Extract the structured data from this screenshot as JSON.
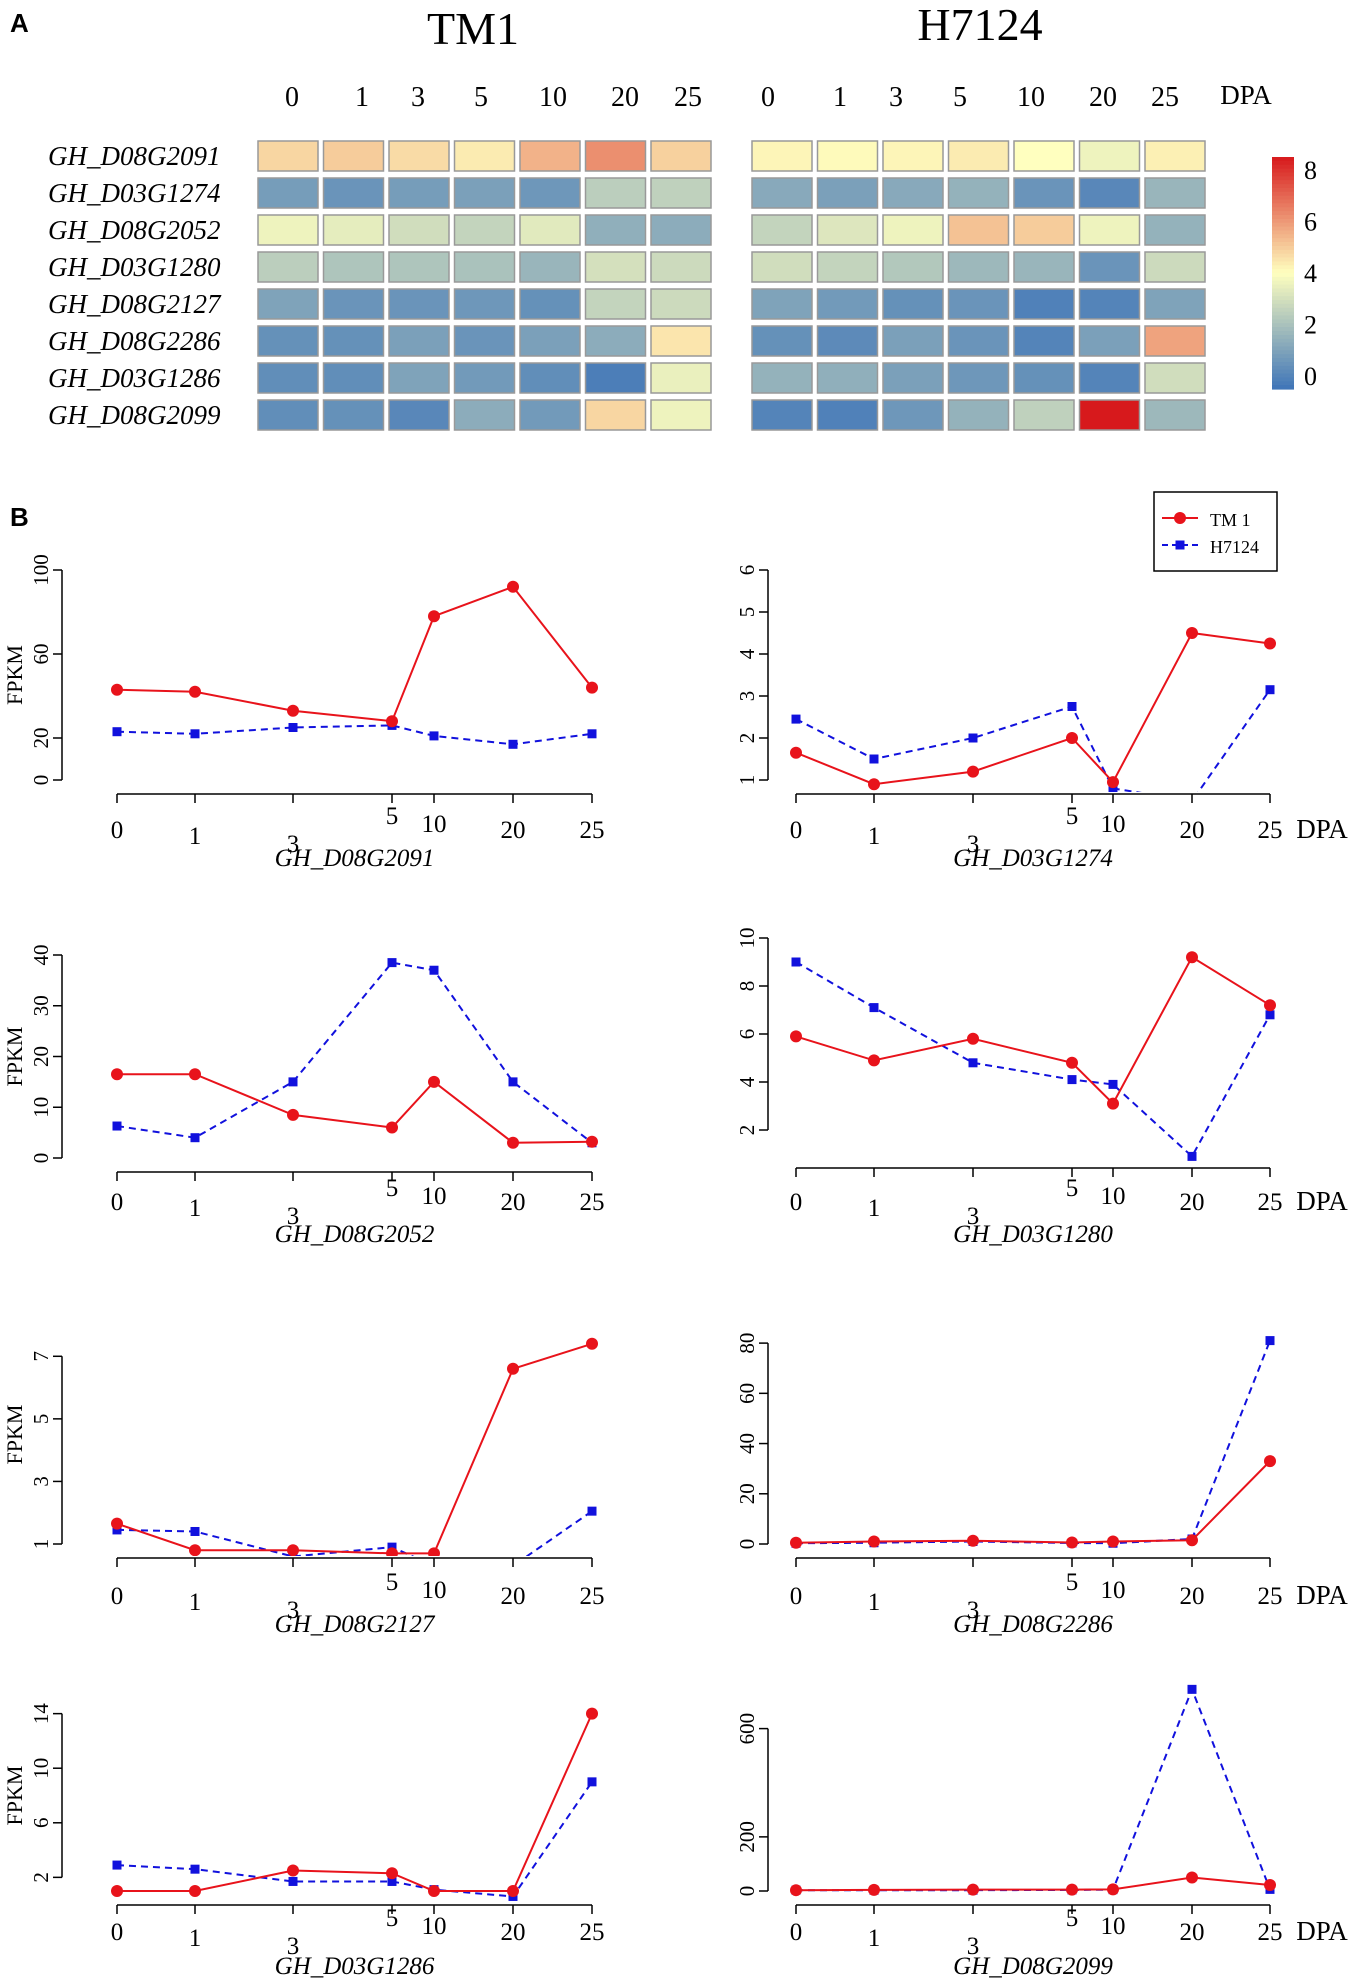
{
  "figure": {
    "panel_a_label": "A",
    "panel_b_label": "B",
    "group1_title": "TM1",
    "group2_title": "H7124",
    "dpa_label": "DPA"
  },
  "colors": {
    "low": "#3f75b8",
    "mid": "#ffffbf",
    "high": "#d7191c",
    "series_tm1": "#e8131b",
    "series_h7124": "#1111dd",
    "cell_border": "#999999"
  },
  "chart_data": [
    {
      "type": "heatmap",
      "title_left": "TM1",
      "title_right": "H7124",
      "columns": [
        "0",
        "1",
        "3",
        "5",
        "10",
        "20",
        "25"
      ],
      "column_unit": "DPA",
      "rows": [
        "GH_D08G2091",
        "GH_D03G1274",
        "GH_D08G2052",
        "GH_D03G1280",
        "GH_D08G2127",
        "GH_D08G2286",
        "GH_D03G1286",
        "GH_D08G2099"
      ],
      "scale_min": -0.5,
      "scale_max": 8.5,
      "legend_ticks": [
        "8",
        "6",
        "4",
        "2",
        "0"
      ],
      "values_tm1": [
        [
          4.8,
          5.0,
          4.7,
          4.4,
          5.5,
          6.2,
          4.9
        ],
        [
          0.8,
          0.5,
          0.8,
          0.9,
          0.6,
          2.4,
          2.5
        ],
        [
          3.6,
          3.4,
          2.9,
          2.6,
          3.3,
          1.4,
          1.3
        ],
        [
          2.4,
          2.1,
          2.1,
          2.0,
          1.6,
          3.0,
          2.8
        ],
        [
          1.0,
          0.5,
          0.5,
          0.6,
          0.4,
          2.6,
          2.8
        ],
        [
          0.4,
          0.4,
          0.9,
          0.5,
          0.9,
          1.3,
          4.5
        ],
        [
          0.3,
          0.3,
          1.0,
          0.7,
          0.3,
          -0.2,
          3.5
        ],
        [
          0.3,
          0.4,
          0.1,
          1.3,
          0.7,
          4.8,
          3.6
        ]
      ],
      "values_h7124": [
        [
          4.2,
          4.1,
          4.2,
          4.4,
          4.0,
          3.6,
          4.3
        ],
        [
          1.2,
          0.9,
          1.2,
          1.5,
          0.5,
          0.1,
          1.6
        ],
        [
          2.6,
          3.2,
          3.6,
          5.2,
          5.0,
          3.6,
          1.5
        ],
        [
          2.9,
          2.6,
          2.2,
          1.7,
          1.6,
          0.5,
          2.8
        ],
        [
          1.0,
          0.7,
          0.4,
          0.5,
          -0.1,
          0.0,
          1.0
        ],
        [
          0.4,
          0.2,
          0.9,
          0.5,
          0.0,
          0.9,
          5.8
        ],
        [
          1.5,
          1.4,
          0.9,
          0.6,
          0.4,
          0.0,
          2.9
        ],
        [
          0.0,
          -0.1,
          0.6,
          1.5,
          2.5,
          8.5,
          1.7
        ]
      ]
    },
    {
      "type": "line",
      "gene": "GH_D08G2091",
      "ylabel": "FPKM",
      "x": [
        "0",
        "1",
        "3",
        "5",
        "10",
        "20",
        "25"
      ],
      "ylim": [
        0,
        100
      ],
      "yticks": [
        0,
        20,
        60,
        100
      ],
      "series": [
        {
          "name": "TM1",
          "values": [
            43,
            42,
            33,
            28,
            78,
            92,
            44
          ]
        },
        {
          "name": "H7124",
          "values": [
            23,
            22,
            25,
            26,
            21,
            17,
            22
          ]
        }
      ]
    },
    {
      "type": "line",
      "gene": "GH_D03G1274",
      "ylabel": "",
      "x": [
        "0",
        "1",
        "3",
        "5",
        "10",
        "20",
        "25"
      ],
      "ylim": [
        1,
        6
      ],
      "yticks": [
        1,
        2,
        3,
        4,
        5,
        6
      ],
      "legend": [
        "TM 1",
        "H7124"
      ],
      "legend_position": "top-right",
      "series": [
        {
          "name": "TM1",
          "values": [
            1.65,
            0.9,
            1.2,
            2.0,
            0.95,
            4.5,
            4.25
          ]
        },
        {
          "name": "H7124",
          "values": [
            2.45,
            1.5,
            2.0,
            2.75,
            0.8,
            0.5,
            3.15
          ]
        }
      ]
    },
    {
      "type": "line",
      "gene": "GH_D08G2052",
      "ylabel": "FPKM",
      "x": [
        "0",
        "1",
        "3",
        "5",
        "10",
        "20",
        "25"
      ],
      "ylim": [
        0,
        40
      ],
      "yticks": [
        0,
        10,
        20,
        30,
        40
      ],
      "series": [
        {
          "name": "TM1",
          "values": [
            16.5,
            16.5,
            8.5,
            6,
            15,
            3,
            3.2
          ]
        },
        {
          "name": "H7124",
          "values": [
            6.3,
            4,
            15,
            38.5,
            37,
            15,
            3
          ]
        }
      ]
    },
    {
      "type": "line",
      "gene": "GH_D03G1280",
      "ylabel": "",
      "x": [
        "0",
        "1",
        "3",
        "5",
        "10",
        "20",
        "25"
      ],
      "ylim": [
        1,
        10
      ],
      "yticks": [
        2,
        4,
        6,
        8,
        10
      ],
      "series": [
        {
          "name": "TM1",
          "values": [
            5.9,
            4.9,
            5.8,
            4.8,
            3.1,
            9.2,
            7.2
          ]
        },
        {
          "name": "H7124",
          "values": [
            9.0,
            7.1,
            4.8,
            4.1,
            3.9,
            0.9,
            6.8
          ]
        }
      ]
    },
    {
      "type": "line",
      "gene": "GH_D08G2127",
      "ylabel": "FPKM",
      "x": [
        "0",
        "1",
        "3",
        "5",
        "10",
        "20",
        "25"
      ],
      "ylim": [
        1,
        8
      ],
      "yticks": [
        1,
        3,
        5,
        7
      ],
      "series": [
        {
          "name": "TM1",
          "values": [
            1.65,
            0.8,
            0.8,
            0.7,
            0.7,
            6.6,
            7.4
          ]
        },
        {
          "name": "H7124",
          "values": [
            1.45,
            1.4,
            0.6,
            0.9,
            0.3,
            0.3,
            2.05
          ]
        }
      ]
    },
    {
      "type": "line",
      "gene": "GH_D08G2286",
      "ylabel": "",
      "x": [
        "0",
        "1",
        "3",
        "5",
        "10",
        "20",
        "25"
      ],
      "ylim": [
        0,
        90
      ],
      "yticks": [
        0,
        20,
        40,
        60,
        80
      ],
      "series": [
        {
          "name": "TM1",
          "values": [
            0.5,
            1,
            1.3,
            0.6,
            1,
            1.5,
            33
          ]
        },
        {
          "name": "H7124",
          "values": [
            0.3,
            0.5,
            1,
            0.4,
            0.3,
            2,
            81
          ]
        }
      ]
    },
    {
      "type": "line",
      "gene": "GH_D03G1286",
      "ylabel": "FPKM",
      "x": [
        "0",
        "1",
        "3",
        "5",
        "10",
        "20",
        "25"
      ],
      "ylim": [
        1,
        15
      ],
      "yticks": [
        2,
        6,
        10,
        14
      ],
      "series": [
        {
          "name": "TM1",
          "values": [
            1.0,
            1.0,
            2.5,
            2.3,
            1.0,
            1.0,
            14.0
          ]
        },
        {
          "name": "H7124",
          "values": [
            2.9,
            2.6,
            1.7,
            1.7,
            1.1,
            0.6,
            9.0
          ]
        }
      ]
    },
    {
      "type": "line",
      "gene": "GH_D08G2099",
      "ylabel": "",
      "x": [
        "0",
        "1",
        "3",
        "5",
        "10",
        "20",
        "25"
      ],
      "ylim": [
        0,
        750
      ],
      "yticks": [
        0,
        200,
        600
      ],
      "series": [
        {
          "name": "TM1",
          "values": [
            3,
            4,
            5,
            5,
            6,
            50,
            22
          ]
        },
        {
          "name": "H7124",
          "values": [
            3,
            3,
            3,
            4,
            5,
            745,
            6
          ]
        }
      ]
    }
  ]
}
